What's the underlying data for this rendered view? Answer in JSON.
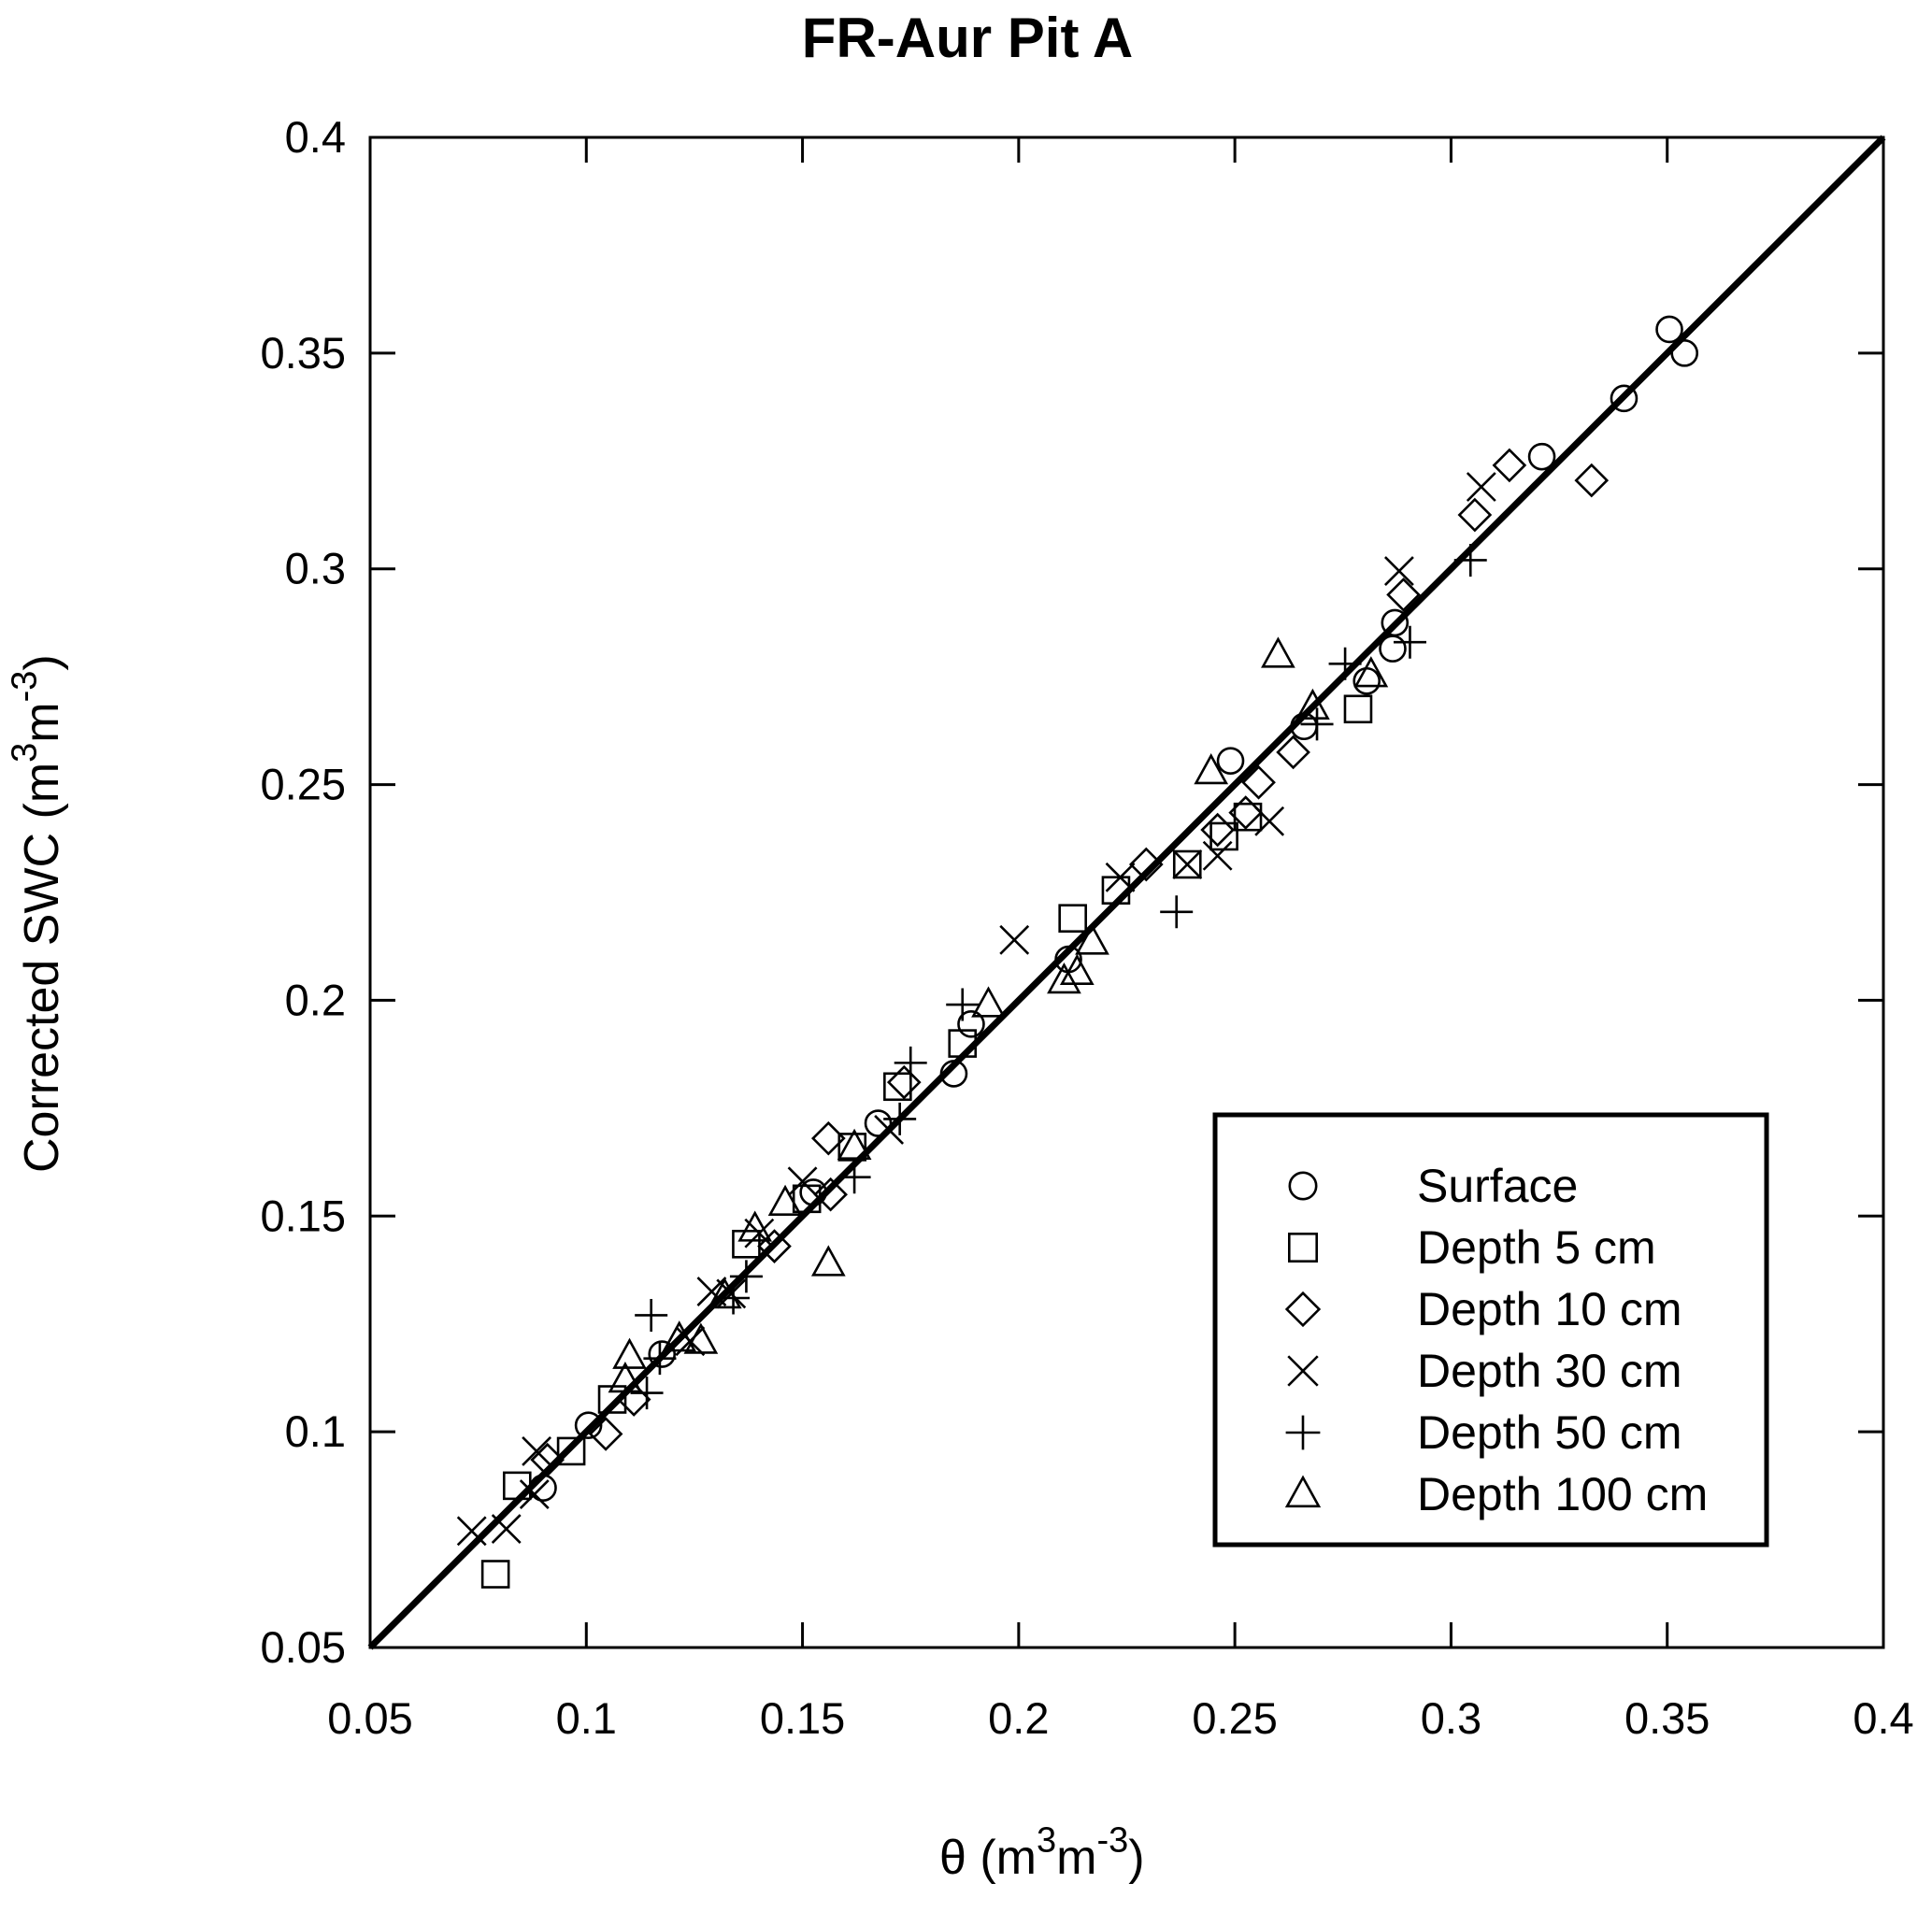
{
  "title": "FR-Aur Pit A",
  "colors": {
    "foreground": "#000000",
    "background": "#ffffff"
  },
  "chart_data": {
    "type": "scatter",
    "title": "FR-Aur Pit A",
    "xlabel": "θ (m3m-3)",
    "ylabel": "Corrected SWC (m3m-3)",
    "xlabel_rich": [
      {
        "t": "θ (m"
      },
      {
        "t": "3",
        "sup": true
      },
      {
        "t": "m"
      },
      {
        "t": "-3",
        "sup": true
      },
      {
        "t": ")"
      }
    ],
    "ylabel_rich": [
      {
        "t": "Corrected SWC (m"
      },
      {
        "t": "3",
        "sup": true
      },
      {
        "t": "m"
      },
      {
        "t": "-3",
        "sup": true
      },
      {
        "t": ")"
      }
    ],
    "xlim": [
      0.05,
      0.4
    ],
    "ylim": [
      0.05,
      0.4
    ],
    "grid": false,
    "xticks": {
      "values": [
        0.05,
        0.1,
        0.15,
        0.2,
        0.25,
        0.3,
        0.35,
        0.4
      ],
      "labels": [
        "0.05",
        "0.1",
        "0.15",
        "0.2",
        "0.25",
        "0.3",
        "0.35",
        "0.4"
      ]
    },
    "yticks": {
      "values": [
        0.05,
        0.1,
        0.15,
        0.2,
        0.25,
        0.3,
        0.35,
        0.4
      ],
      "labels": [
        "0.05",
        "0.1",
        "0.15",
        "0.2",
        "0.25",
        "0.3",
        "0.35",
        "0.4"
      ]
    },
    "identity_line": {
      "from": [
        0.05,
        0.05
      ],
      "to": [
        0.4,
        0.4
      ]
    },
    "legend": {
      "position": "lower-right",
      "entries": [
        {
          "marker": "circle",
          "label": "Surface"
        },
        {
          "marker": "square",
          "label": "Depth 5 cm"
        },
        {
          "marker": "diamond",
          "label": "Depth 10 cm"
        },
        {
          "marker": "x",
          "label": "Depth 30 cm"
        },
        {
          "marker": "plus",
          "label": "Depth 50 cm"
        },
        {
          "marker": "triangle",
          "label": "Depth 100 cm"
        }
      ]
    },
    "series": [
      {
        "name": "Surface",
        "marker": "circle",
        "points": [
          [
            0.09,
            0.087
          ],
          [
            0.1005,
            0.1015
          ],
          [
            0.1175,
            0.118
          ],
          [
            0.1525,
            0.1555
          ],
          [
            0.1675,
            0.1715
          ],
          [
            0.185,
            0.183
          ],
          [
            0.189,
            0.1945
          ],
          [
            0.2115,
            0.2095
          ],
          [
            0.249,
            0.2555
          ],
          [
            0.266,
            0.2635
          ],
          [
            0.2805,
            0.274
          ],
          [
            0.2865,
            0.2815
          ],
          [
            0.287,
            0.2875
          ],
          [
            0.321,
            0.326
          ],
          [
            0.34,
            0.3395
          ],
          [
            0.3505,
            0.3555
          ],
          [
            0.354,
            0.35
          ]
        ]
      },
      {
        "name": "Depth 5 cm",
        "marker": "square",
        "points": [
          [
            0.079,
            0.067
          ],
          [
            0.084,
            0.0875
          ],
          [
            0.0965,
            0.0955
          ],
          [
            0.106,
            0.1075
          ],
          [
            0.137,
            0.1435
          ],
          [
            0.151,
            0.154
          ],
          [
            0.1615,
            0.166
          ],
          [
            0.172,
            0.18
          ],
          [
            0.187,
            0.19
          ],
          [
            0.2125,
            0.219
          ],
          [
            0.2225,
            0.2255
          ],
          [
            0.239,
            0.2315
          ],
          [
            0.2475,
            0.238
          ],
          [
            0.253,
            0.2425
          ],
          [
            0.2785,
            0.2675
          ]
        ]
      },
      {
        "name": "Depth 10 cm",
        "marker": "diamond",
        "points": [
          [
            0.091,
            0.0935
          ],
          [
            0.1045,
            0.0995
          ],
          [
            0.111,
            0.1075
          ],
          [
            0.1435,
            0.143
          ],
          [
            0.1565,
            0.155
          ],
          [
            0.156,
            0.168
          ],
          [
            0.1735,
            0.181
          ],
          [
            0.2295,
            0.2315
          ],
          [
            0.246,
            0.2395
          ],
          [
            0.2525,
            0.2435
          ],
          [
            0.2555,
            0.2505
          ],
          [
            0.2635,
            0.2575
          ],
          [
            0.289,
            0.294
          ],
          [
            0.3055,
            0.3125
          ],
          [
            0.3135,
            0.324
          ],
          [
            0.3325,
            0.3205
          ]
        ]
      },
      {
        "name": "Depth 30 cm",
        "marker": "x",
        "points": [
          [
            0.0735,
            0.077
          ],
          [
            0.0815,
            0.0775
          ],
          [
            0.088,
            0.0855
          ],
          [
            0.0885,
            0.0955
          ],
          [
            0.124,
            0.121
          ],
          [
            0.129,
            0.1325
          ],
          [
            0.1335,
            0.132
          ],
          [
            0.14,
            0.146
          ],
          [
            0.15,
            0.158
          ],
          [
            0.17,
            0.17
          ],
          [
            0.199,
            0.214
          ],
          [
            0.2235,
            0.2285
          ],
          [
            0.239,
            0.2315
          ],
          [
            0.246,
            0.2335
          ],
          [
            0.258,
            0.2415
          ],
          [
            0.288,
            0.2995
          ],
          [
            0.307,
            0.319
          ]
        ]
      },
      {
        "name": "Depth 50 cm",
        "marker": "plus",
        "points": [
          [
            0.114,
            0.109
          ],
          [
            0.115,
            0.127
          ],
          [
            0.117,
            0.117
          ],
          [
            0.134,
            0.131
          ],
          [
            0.137,
            0.136
          ],
          [
            0.162,
            0.159
          ],
          [
            0.1725,
            0.1725
          ],
          [
            0.175,
            0.1855
          ],
          [
            0.187,
            0.199
          ],
          [
            0.2365,
            0.2205
          ],
          [
            0.269,
            0.264
          ],
          [
            0.2755,
            0.278
          ],
          [
            0.2905,
            0.283
          ],
          [
            0.3045,
            0.302
          ]
        ]
      },
      {
        "name": "Depth 100 cm",
        "marker": "triangle",
        "points": [
          [
            0.109,
            0.112
          ],
          [
            0.11,
            0.1175
          ],
          [
            0.1215,
            0.1215
          ],
          [
            0.1265,
            0.121
          ],
          [
            0.132,
            0.1315
          ],
          [
            0.139,
            0.147
          ],
          [
            0.146,
            0.153
          ],
          [
            0.156,
            0.139
          ],
          [
            0.162,
            0.166
          ],
          [
            0.193,
            0.199
          ],
          [
            0.2105,
            0.2045
          ],
          [
            0.2135,
            0.2065
          ],
          [
            0.217,
            0.2135
          ],
          [
            0.2445,
            0.253
          ],
          [
            0.26,
            0.28
          ],
          [
            0.268,
            0.268
          ],
          [
            0.2815,
            0.2755
          ]
        ]
      }
    ]
  }
}
